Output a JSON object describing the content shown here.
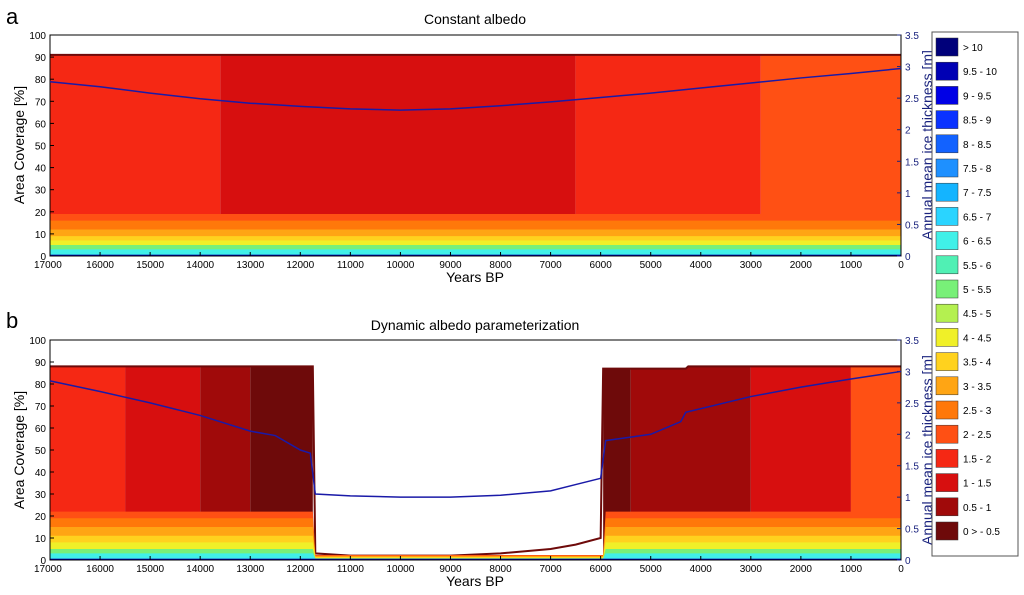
{
  "figure": {
    "legend": {
      "items": [
        {
          "label": "> 10",
          "color": "#00007a"
        },
        {
          "label": "9.5 - 10",
          "color": "#0000b4"
        },
        {
          "label": "9 - 9.5",
          "color": "#0000e6"
        },
        {
          "label": "8.5 - 9",
          "color": "#0a32ff"
        },
        {
          "label": "8 - 8.5",
          "color": "#1262ff"
        },
        {
          "label": "7.5 - 8",
          "color": "#1e90ff"
        },
        {
          "label": "7 - 7.5",
          "color": "#14b4ff"
        },
        {
          "label": "6.5 - 7",
          "color": "#2ad4ff"
        },
        {
          "label": "6 - 6.5",
          "color": "#40f0e8"
        },
        {
          "label": "5.5 - 6",
          "color": "#50f0b4"
        },
        {
          "label": "5 - 5.5",
          "color": "#78f078"
        },
        {
          "label": "4.5 - 5",
          "color": "#b4f050"
        },
        {
          "label": "4 - 4.5",
          "color": "#f0f028"
        },
        {
          "label": "3.5 - 4",
          "color": "#ffd21e"
        },
        {
          "label": "3 - 3.5",
          "color": "#ffa514"
        },
        {
          "label": "2.5 - 3",
          "color": "#ff780a"
        },
        {
          "label": "2 - 2.5",
          "color": "#ff5014"
        },
        {
          "label": "1.5 - 2",
          "color": "#f52814"
        },
        {
          "label": "1 - 1.5",
          "color": "#d70f0f"
        },
        {
          "label": "0.5 - 1",
          "color": "#a00a0a"
        },
        {
          "label": "0 > - 0.5",
          "color": "#6e0a0a"
        }
      ]
    }
  },
  "chart_data": [
    {
      "panel_letter": "a",
      "type": "area",
      "title": "Constant albedo",
      "xlabel": "Years BP",
      "ylabel": "Area Coverage [%]",
      "ylabel_right": "Annual mean ice thickness [m]",
      "xlim": [
        17000,
        0
      ],
      "ylim": [
        0,
        100
      ],
      "ylim_right": [
        0,
        3.5
      ],
      "x_ticks": [
        17000,
        16000,
        15000,
        14000,
        13000,
        12000,
        11000,
        10000,
        9000,
        8000,
        7000,
        6000,
        5000,
        4000,
        3000,
        2000,
        1000,
        0
      ],
      "y_ticks": [
        0,
        10,
        20,
        30,
        40,
        50,
        60,
        70,
        80,
        90,
        100
      ],
      "y_ticks_right": [
        0,
        0.5,
        1,
        1.5,
        2,
        2.5,
        3,
        3.5
      ],
      "total_coverage": {
        "x": [
          17000,
          0
        ],
        "y": [
          91,
          91
        ]
      },
      "bands": [
        {
          "range": "6 - 6.5",
          "x": [
            17000,
            0
          ],
          "top": [
            3,
            3
          ]
        },
        {
          "range": "5 - 5.5",
          "x": [
            17000,
            0
          ],
          "top": [
            5,
            5
          ]
        },
        {
          "range": "4 - 4.5",
          "x": [
            17000,
            0
          ],
          "top": [
            7,
            7
          ]
        },
        {
          "range": "3.5 - 4",
          "x": [
            17000,
            0
          ],
          "top": [
            9,
            9
          ]
        },
        {
          "range": "3 - 3.5",
          "x": [
            17000,
            0
          ],
          "top": [
            12,
            12
          ]
        },
        {
          "range": "2.5 - 3",
          "x": [
            17000,
            0
          ],
          "top": [
            16,
            16
          ]
        },
        {
          "range": "2 - 2.5",
          "x": [
            17000,
            0
          ],
          "top": [
            19,
            19
          ]
        }
      ],
      "dominant_fill": [
        {
          "range": "1.5 - 2",
          "x": [
            17000,
            13600
          ]
        },
        {
          "range": "1 - 1.5",
          "x": [
            13600,
            6500
          ]
        },
        {
          "range": "1.5 - 2",
          "x": [
            6500,
            2800
          ]
        },
        {
          "range": "2 - 2.5",
          "x": [
            2800,
            0
          ]
        }
      ],
      "ice_thickness": {
        "x": [
          17000,
          16000,
          15000,
          14000,
          13000,
          12000,
          11000,
          10000,
          9000,
          8000,
          7000,
          6000,
          5000,
          4000,
          3000,
          2000,
          1000,
          0
        ],
        "y": [
          2.76,
          2.68,
          2.58,
          2.49,
          2.42,
          2.37,
          2.33,
          2.31,
          2.33,
          2.38,
          2.44,
          2.51,
          2.58,
          2.66,
          2.74,
          2.82,
          2.89,
          2.97
        ]
      }
    },
    {
      "panel_letter": "b",
      "type": "area",
      "title": "Dynamic albedo parameterization",
      "xlabel": "Years BP",
      "ylabel": "Area Coverage [%]",
      "ylabel_right": "Annual mean ice thickness [m]",
      "xlim": [
        17000,
        0
      ],
      "ylim": [
        0,
        100
      ],
      "ylim_right": [
        0,
        3.5
      ],
      "x_ticks": [
        17000,
        16000,
        15000,
        14000,
        13000,
        12000,
        11000,
        10000,
        9000,
        8000,
        7000,
        6000,
        5000,
        4000,
        3000,
        2000,
        1000,
        0
      ],
      "y_ticks": [
        0,
        10,
        20,
        30,
        40,
        50,
        60,
        70,
        80,
        90,
        100
      ],
      "y_ticks_right": [
        0,
        0.5,
        1,
        1.5,
        2,
        2.5,
        3,
        3.5
      ],
      "total_coverage": {
        "x": [
          17000,
          11750,
          11700,
          11000,
          10000,
          9000,
          8000,
          7000,
          6500,
          6000,
          5950,
          4300,
          4250,
          0
        ],
        "y": [
          88,
          88,
          3,
          2,
          2,
          2,
          3,
          5,
          7,
          10,
          87,
          87,
          88,
          88
        ]
      },
      "bands": [
        {
          "range": "6 - 6.5",
          "x": [
            17000,
            11750,
            11700,
            5950,
            5900,
            0
          ],
          "top": [
            3,
            3,
            0.5,
            0.5,
            3,
            3
          ]
        },
        {
          "range": "5 - 5.5",
          "x": [
            17000,
            11750,
            11700,
            5950,
            5900,
            0
          ],
          "top": [
            5,
            5,
            0.8,
            0.8,
            5,
            5
          ]
        },
        {
          "range": "4 - 4.5",
          "x": [
            17000,
            11750,
            11700,
            5950,
            5900,
            0
          ],
          "top": [
            8,
            8,
            1.1,
            1.1,
            8,
            8
          ]
        },
        {
          "range": "3.5 - 4",
          "x": [
            17000,
            11750,
            11700,
            5950,
            5900,
            0
          ],
          "top": [
            11,
            11,
            1.4,
            1.4,
            11,
            11
          ]
        },
        {
          "range": "3 - 3.5",
          "x": [
            17000,
            11750,
            11700,
            5950,
            5900,
            0
          ],
          "top": [
            15,
            15,
            1.7,
            1.7,
            15,
            15
          ]
        },
        {
          "range": "2.5 - 3",
          "x": [
            17000,
            11750,
            11700,
            5950,
            5900,
            0
          ],
          "top": [
            19,
            19,
            2.0,
            2.0,
            19,
            19
          ]
        },
        {
          "range": "2 - 2.5",
          "x": [
            17000,
            11750,
            11700,
            5950,
            5900,
            0
          ],
          "top": [
            22,
            22,
            2.3,
            2.3,
            22,
            22
          ]
        }
      ],
      "dominant_fill": [
        {
          "range": "1.5 - 2",
          "x": [
            17000,
            15500
          ]
        },
        {
          "range": "1 - 1.5",
          "x": [
            15500,
            14000
          ]
        },
        {
          "range": "0.5 - 1",
          "x": [
            14000,
            13000
          ]
        },
        {
          "range": "0 > - 0.5",
          "x": [
            13000,
            11750
          ]
        },
        {
          "range": "0 > - 0.5",
          "x": [
            5950,
            5400
          ]
        },
        {
          "range": "0.5 - 1",
          "x": [
            5400,
            3000
          ]
        },
        {
          "range": "1 - 1.5",
          "x": [
            3000,
            1000
          ]
        },
        {
          "range": "2 - 2.5",
          "x": [
            1000,
            0
          ]
        }
      ],
      "ice_thickness": {
        "x": [
          17000,
          16000,
          15000,
          14000,
          13000,
          12500,
          12000,
          11800,
          11700,
          11000,
          10000,
          9000,
          8000,
          7000,
          6500,
          6000,
          5900,
          5000,
          4400,
          4300,
          3000,
          2000,
          1000,
          0
        ],
        "y": [
          2.85,
          2.68,
          2.5,
          2.3,
          2.05,
          1.98,
          1.75,
          1.7,
          1.05,
          1.02,
          1.0,
          1.0,
          1.03,
          1.1,
          1.2,
          1.3,
          1.9,
          2.0,
          2.2,
          2.35,
          2.6,
          2.75,
          2.88,
          3.0
        ]
      }
    }
  ]
}
